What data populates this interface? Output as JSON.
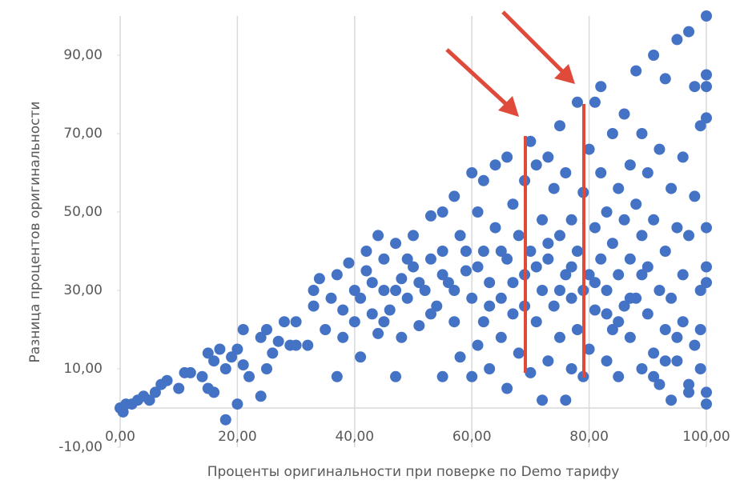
{
  "chart_data": {
    "type": "scatter",
    "x_label": "Проценты оригинальности при поверке по Demo тарифу",
    "y_label": "Разница процентов оригинальности",
    "color": "#4472c4",
    "x": [
      0,
      0.5,
      1,
      2,
      3,
      4,
      5,
      6,
      7,
      8,
      10,
      11,
      12,
      14,
      15,
      15,
      16,
      16,
      17,
      18,
      18,
      19,
      20,
      20,
      21,
      21,
      22,
      24,
      24,
      25,
      25,
      26,
      27,
      28,
      29,
      30,
      30,
      32,
      33,
      33,
      34,
      35,
      36,
      37,
      37,
      38,
      38,
      39,
      40,
      40,
      41,
      41,
      42,
      42,
      43,
      43,
      44,
      44,
      45,
      45,
      46,
      47,
      47,
      48,
      48,
      49,
      50,
      50,
      51,
      52,
      53,
      53,
      54,
      55,
      55,
      55,
      56,
      57,
      57,
      58,
      58,
      59,
      60,
      60,
      60,
      61,
      61,
      62,
      62,
      62,
      63,
      63,
      64,
      64,
      65,
      65,
      66,
      66,
      66,
      67,
      67,
      68,
      68,
      69,
      69,
      70,
      70,
      70,
      71,
      71,
      72,
      72,
      72,
      73,
      73,
      73,
      74,
      74,
      75,
      75,
      75,
      76,
      76,
      76,
      77,
      77,
      77,
      78,
      78,
      78,
      79,
      79,
      80,
      80,
      80,
      81,
      81,
      81,
      82,
      82,
      82,
      83,
      83,
      83,
      84,
      84,
      84,
      85,
      85,
      85,
      86,
      86,
      86,
      87,
      87,
      87,
      88,
      88,
      88,
      89,
      89,
      89,
      90,
      90,
      90,
      91,
      91,
      91,
      92,
      92,
      92,
      93,
      93,
      93,
      94,
      94,
      94,
      95,
      95,
      95,
      96,
      96,
      96,
      97,
      97,
      97,
      98,
      98,
      98,
      99,
      99,
      99,
      100,
      100,
      100,
      100,
      100,
      100,
      100,
      100,
      100,
      99,
      97,
      95,
      93,
      91,
      89,
      87,
      85,
      83,
      81,
      79,
      77,
      75,
      73,
      71,
      69,
      67,
      65,
      63,
      61,
      59,
      57,
      55,
      53,
      51,
      49,
      47,
      45
    ],
    "values": [
      0,
      -1,
      1,
      1,
      2,
      3,
      2,
      4,
      6,
      7,
      5,
      9,
      9,
      8,
      5,
      14,
      4,
      12,
      15,
      10,
      -3,
      13,
      15,
      1,
      20,
      11,
      8,
      3,
      18,
      20,
      10,
      14,
      17,
      22,
      16,
      22,
      16,
      16,
      30,
      26,
      33,
      20,
      28,
      8,
      34,
      25,
      18,
      37,
      30,
      22,
      28,
      13,
      35,
      40,
      24,
      32,
      44,
      19,
      30,
      38,
      25,
      8,
      42,
      33,
      18,
      28,
      36,
      44,
      21,
      30,
      49,
      38,
      26,
      50,
      8,
      40,
      32,
      22,
      54,
      44,
      13,
      35,
      60,
      28,
      8,
      50,
      16,
      40,
      58,
      22,
      32,
      10,
      46,
      62,
      28,
      18,
      64,
      38,
      5,
      52,
      24,
      44,
      14,
      34,
      58,
      68,
      9,
      40,
      22,
      62,
      30,
      2,
      48,
      64,
      12,
      38,
      56,
      26,
      44,
      72,
      18,
      34,
      2,
      60,
      48,
      10,
      28,
      78,
      40,
      20,
      8,
      55,
      34,
      66,
      15,
      46,
      78,
      25,
      60,
      38,
      82,
      12,
      50,
      30,
      70,
      20,
      42,
      56,
      8,
      34,
      75,
      26,
      48,
      62,
      18,
      38,
      86,
      52,
      28,
      10,
      44,
      70,
      24,
      60,
      36,
      90,
      14,
      48,
      30,
      66,
      6,
      84,
      40,
      20,
      56,
      28,
      2,
      94,
      46,
      12,
      64,
      34,
      22,
      96,
      44,
      6,
      54,
      16,
      82,
      30,
      72,
      10,
      100,
      85,
      74,
      46,
      36,
      32,
      4,
      1,
      82,
      20,
      4,
      18,
      12,
      8,
      34,
      28,
      22,
      24,
      32,
      30,
      36,
      30,
      42,
      36,
      26,
      32,
      40,
      26,
      36,
      40,
      30,
      34,
      24,
      32,
      38,
      30,
      22
    ],
    "xlim": [
      0,
      100
    ],
    "ylim": [
      -10,
      100
    ],
    "xticks": [
      {
        "value": 0,
        "label": "0,00"
      },
      {
        "value": 20,
        "label": "20,00"
      },
      {
        "value": 40,
        "label": "40,00"
      },
      {
        "value": 60,
        "label": "60,00"
      },
      {
        "value": 80,
        "label": "80,00"
      },
      {
        "value": 100,
        "label": "100,00"
      }
    ],
    "yticks": [
      {
        "value": -10,
        "label": "-10,00"
      },
      {
        "value": 10,
        "label": "10,00"
      },
      {
        "value": 30,
        "label": "30,00"
      },
      {
        "value": 50,
        "label": "50,00"
      },
      {
        "value": 70,
        "label": "70,00"
      },
      {
        "value": 90,
        "label": "90,00"
      }
    ],
    "grid": true
  }
}
